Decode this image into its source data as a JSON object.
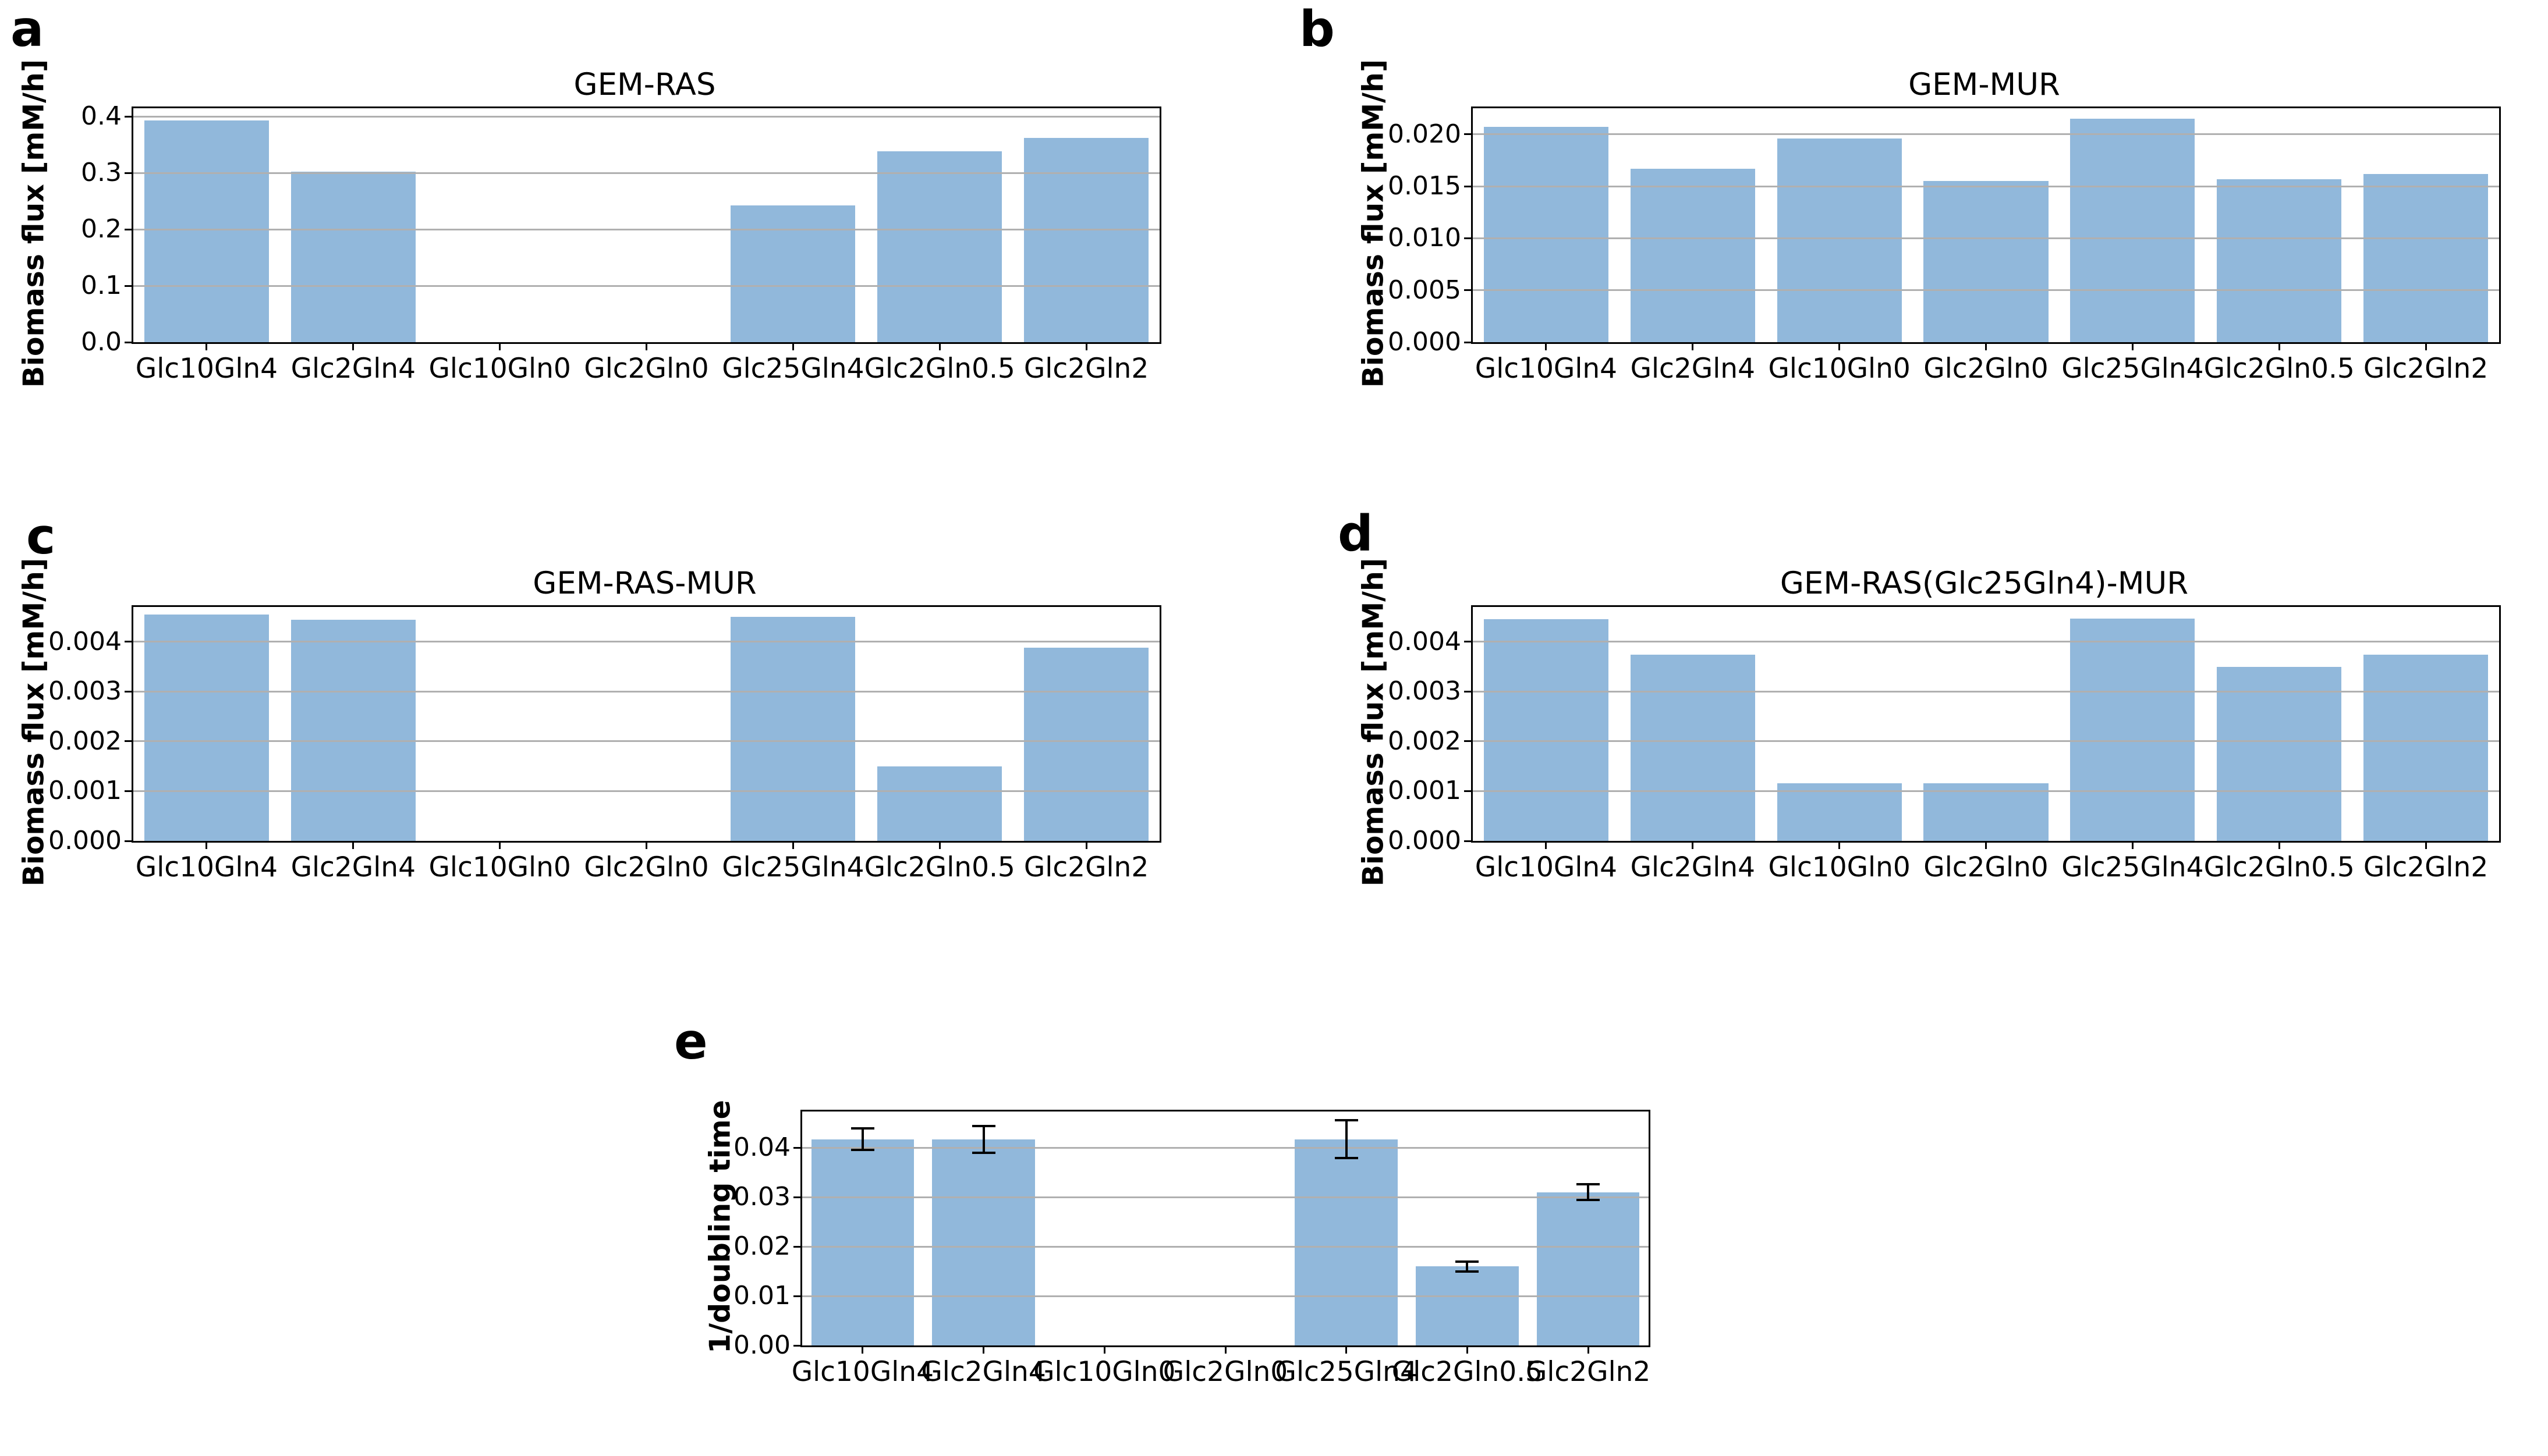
{
  "figure": {
    "background": "#ffffff",
    "bar_color": "#91b8db",
    "grid_color": "#b0b0b0",
    "axis_color": "#000000",
    "error_bar_color": "#000000"
  },
  "chart_data": [
    {
      "panel": "a",
      "type": "bar",
      "title": "GEM-RAS",
      "ylabel": "Biomass flux [mM/h]",
      "xlabel": "",
      "grid": true,
      "legend_position": "none",
      "categories": [
        "Glc10Gln4",
        "Glc2Gln4",
        "Glc10Gln0",
        "Glc2Gln0",
        "Glc25Gln4",
        "Glc2Gln0.5",
        "Glc2Gln2"
      ],
      "values": [
        0.393,
        0.302,
        0,
        0,
        0.242,
        0.338,
        0.362
      ],
      "ylim": [
        0,
        0.4145
      ],
      "yticks": [
        0.0,
        0.1,
        0.2,
        0.3,
        0.4
      ],
      "ytick_labels": [
        "0.0",
        "0.1",
        "0.2",
        "0.3",
        "0.4"
      ]
    },
    {
      "panel": "b",
      "type": "bar",
      "title": "GEM-MUR",
      "ylabel": "Biomass flux [mM/h]",
      "xlabel": "",
      "grid": true,
      "legend_position": "none",
      "categories": [
        "Glc10Gln4",
        "Glc2Gln4",
        "Glc10Gln0",
        "Glc2Gln0",
        "Glc25Gln4",
        "Glc2Gln0.5",
        "Glc2Gln2"
      ],
      "values": [
        0.0207,
        0.0167,
        0.0196,
        0.0155,
        0.0215,
        0.0157,
        0.0162
      ],
      "ylim": [
        0,
        0.0225
      ],
      "yticks": [
        0.0,
        0.005,
        0.01,
        0.015,
        0.02
      ],
      "ytick_labels": [
        "0.000",
        "0.005",
        "0.010",
        "0.015",
        "0.020"
      ]
    },
    {
      "panel": "c",
      "type": "bar",
      "title": "GEM-RAS-MUR",
      "ylabel": "Biomass flux [mM/h]",
      "xlabel": "",
      "grid": true,
      "legend_position": "none",
      "categories": [
        "Glc10Gln4",
        "Glc2Gln4",
        "Glc10Gln0",
        "Glc2Gln0",
        "Glc25Gln4",
        "Glc2Gln0.5",
        "Glc2Gln2"
      ],
      "values": [
        0.00455,
        0.00444,
        0,
        0,
        0.0045,
        0.0015,
        0.00388
      ],
      "ylim": [
        0,
        0.0047
      ],
      "yticks": [
        0.0,
        0.001,
        0.002,
        0.003,
        0.004
      ],
      "ytick_labels": [
        "0.000",
        "0.001",
        "0.002",
        "0.003",
        "0.004"
      ]
    },
    {
      "panel": "d",
      "type": "bar",
      "title": "GEM-RAS(Glc25Gln4)-MUR",
      "ylabel": "Biomass flux [mM/h]",
      "xlabel": "",
      "grid": true,
      "legend_position": "none",
      "categories": [
        "Glc10Gln4",
        "Glc2Gln4",
        "Glc10Gln0",
        "Glc2Gln0",
        "Glc25Gln4",
        "Glc2Gln0.5",
        "Glc2Gln2"
      ],
      "values": [
        0.00446,
        0.00374,
        0.00116,
        0.00116,
        0.00447,
        0.0035,
        0.00374
      ],
      "ylim": [
        0,
        0.0047
      ],
      "yticks": [
        0.0,
        0.001,
        0.002,
        0.003,
        0.004
      ],
      "ytick_labels": [
        "0.000",
        "0.001",
        "0.002",
        "0.003",
        "0.004"
      ]
    },
    {
      "panel": "e",
      "type": "bar",
      "title": "",
      "ylabel": "1/doubling time",
      "xlabel": "",
      "grid": true,
      "legend_position": "none",
      "categories": [
        "Glc10Gln4",
        "Glc2Gln4",
        "Glc10Gln0",
        "Glc2Gln0",
        "Glc25Gln4",
        "Glc2Gln0.5",
        "Glc2Gln2"
      ],
      "values": [
        0.0417,
        0.0417,
        0,
        0,
        0.0417,
        0.016,
        0.031
      ],
      "errors": [
        0.0022,
        0.0027,
        0,
        0,
        0.0038,
        0.001,
        0.0016
      ],
      "ylim": [
        0,
        0.0473
      ],
      "yticks": [
        0.0,
        0.01,
        0.02,
        0.03,
        0.04
      ],
      "ytick_labels": [
        "0.00",
        "0.01",
        "0.02",
        "0.03",
        "0.04"
      ]
    }
  ]
}
